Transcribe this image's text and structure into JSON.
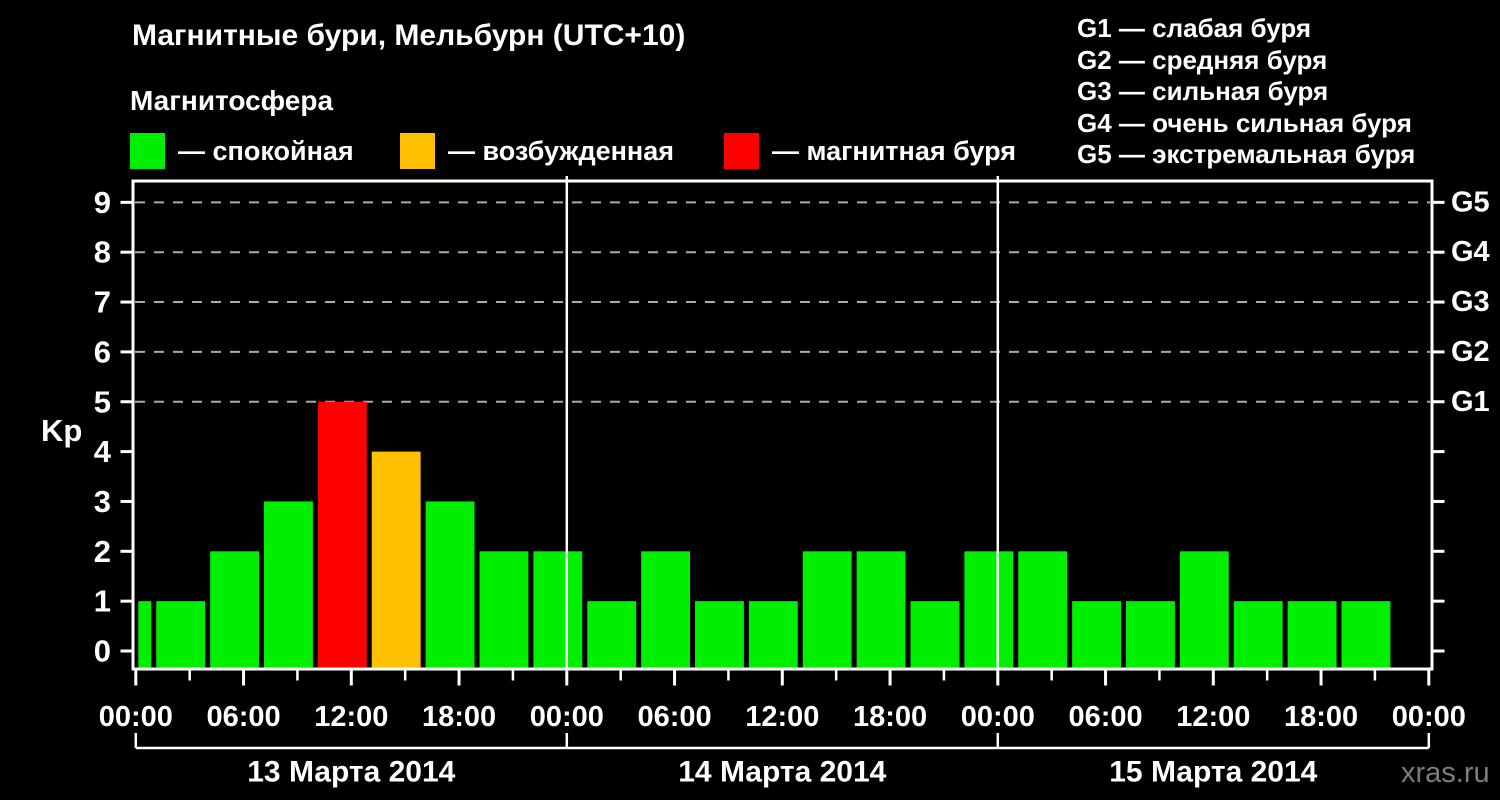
{
  "page": {
    "background": "#000000",
    "watermark": "xras.ru"
  },
  "header": {
    "title": "Магнитные бури, Мельбурн (UTC+10)",
    "subtitle": "Магнитосфера"
  },
  "legend": {
    "items": [
      {
        "label": "— спокойная",
        "level": "quiet"
      },
      {
        "label": "— возбужденная",
        "level": "excited"
      },
      {
        "label": "— магнитная буря",
        "level": "storm"
      }
    ]
  },
  "storm_scale": {
    "items": [
      "G1 — слабая буря",
      "G2 — средняя буря",
      "G3 — сильная буря",
      "G4 — очень сильная буря",
      "G5 — экстремальная буря"
    ]
  },
  "chart_data": {
    "type": "bar",
    "title": "Магнитные бури, Мельбурн (UTC+10)",
    "xlabel": "",
    "ylabel": "Kp",
    "ylim": [
      0,
      9
    ],
    "y_ticks": [
      0,
      1,
      2,
      3,
      4,
      5,
      6,
      7,
      8,
      9
    ],
    "grid_levels": [
      5,
      6,
      7,
      8,
      9
    ],
    "grid_style": "dashed",
    "right_axis_labels": [
      {
        "kp": 5,
        "label": "G1"
      },
      {
        "kp": 6,
        "label": "G2"
      },
      {
        "kp": 7,
        "label": "G3"
      },
      {
        "kp": 8,
        "label": "G4"
      },
      {
        "kp": 9,
        "label": "G5"
      }
    ],
    "x_hours": [
      0,
      72
    ],
    "x_tick_step_minor": 3,
    "x_tick_step_major": 6,
    "x_tick_labels": [
      "00:00",
      "06:00",
      "12:00",
      "18:00",
      "00:00",
      "06:00",
      "12:00",
      "18:00",
      "00:00",
      "06:00",
      "12:00",
      "18:00",
      "00:00"
    ],
    "days": [
      {
        "label": "13 Марта 2014",
        "start_hour": 0
      },
      {
        "label": "14 Марта 2014",
        "start_hour": 24
      },
      {
        "label": "15 Марта 2014",
        "start_hour": 48
      }
    ],
    "colors": {
      "quiet": "#00EE00",
      "excited": "#FFC000",
      "storm": "#FF0000"
    },
    "bars": [
      {
        "start_hour": 0,
        "end_hour": 1,
        "kp": 1,
        "level": "quiet"
      },
      {
        "start_hour": 1,
        "end_hour": 4,
        "kp": 1,
        "level": "quiet"
      },
      {
        "start_hour": 4,
        "end_hour": 7,
        "kp": 2,
        "level": "quiet"
      },
      {
        "start_hour": 7,
        "end_hour": 10,
        "kp": 3,
        "level": "quiet"
      },
      {
        "start_hour": 10,
        "end_hour": 13,
        "kp": 5,
        "level": "storm"
      },
      {
        "start_hour": 13,
        "end_hour": 16,
        "kp": 4,
        "level": "excited"
      },
      {
        "start_hour": 16,
        "end_hour": 19,
        "kp": 3,
        "level": "quiet"
      },
      {
        "start_hour": 19,
        "end_hour": 22,
        "kp": 2,
        "level": "quiet"
      },
      {
        "start_hour": 22,
        "end_hour": 25,
        "kp": 2,
        "level": "quiet"
      },
      {
        "start_hour": 25,
        "end_hour": 28,
        "kp": 1,
        "level": "quiet"
      },
      {
        "start_hour": 28,
        "end_hour": 31,
        "kp": 2,
        "level": "quiet"
      },
      {
        "start_hour": 31,
        "end_hour": 34,
        "kp": 1,
        "level": "quiet"
      },
      {
        "start_hour": 34,
        "end_hour": 37,
        "kp": 1,
        "level": "quiet"
      },
      {
        "start_hour": 37,
        "end_hour": 40,
        "kp": 2,
        "level": "quiet"
      },
      {
        "start_hour": 40,
        "end_hour": 43,
        "kp": 2,
        "level": "quiet"
      },
      {
        "start_hour": 43,
        "end_hour": 46,
        "kp": 1,
        "level": "quiet"
      },
      {
        "start_hour": 46,
        "end_hour": 49,
        "kp": 2,
        "level": "quiet"
      },
      {
        "start_hour": 49,
        "end_hour": 52,
        "kp": 2,
        "level": "quiet"
      },
      {
        "start_hour": 52,
        "end_hour": 55,
        "kp": 1,
        "level": "quiet"
      },
      {
        "start_hour": 55,
        "end_hour": 58,
        "kp": 1,
        "level": "quiet"
      },
      {
        "start_hour": 58,
        "end_hour": 61,
        "kp": 2,
        "level": "quiet"
      },
      {
        "start_hour": 61,
        "end_hour": 64,
        "kp": 1,
        "level": "quiet"
      },
      {
        "start_hour": 64,
        "end_hour": 67,
        "kp": 1,
        "level": "quiet"
      },
      {
        "start_hour": 67,
        "end_hour": 70,
        "kp": 1,
        "level": "quiet"
      }
    ]
  }
}
